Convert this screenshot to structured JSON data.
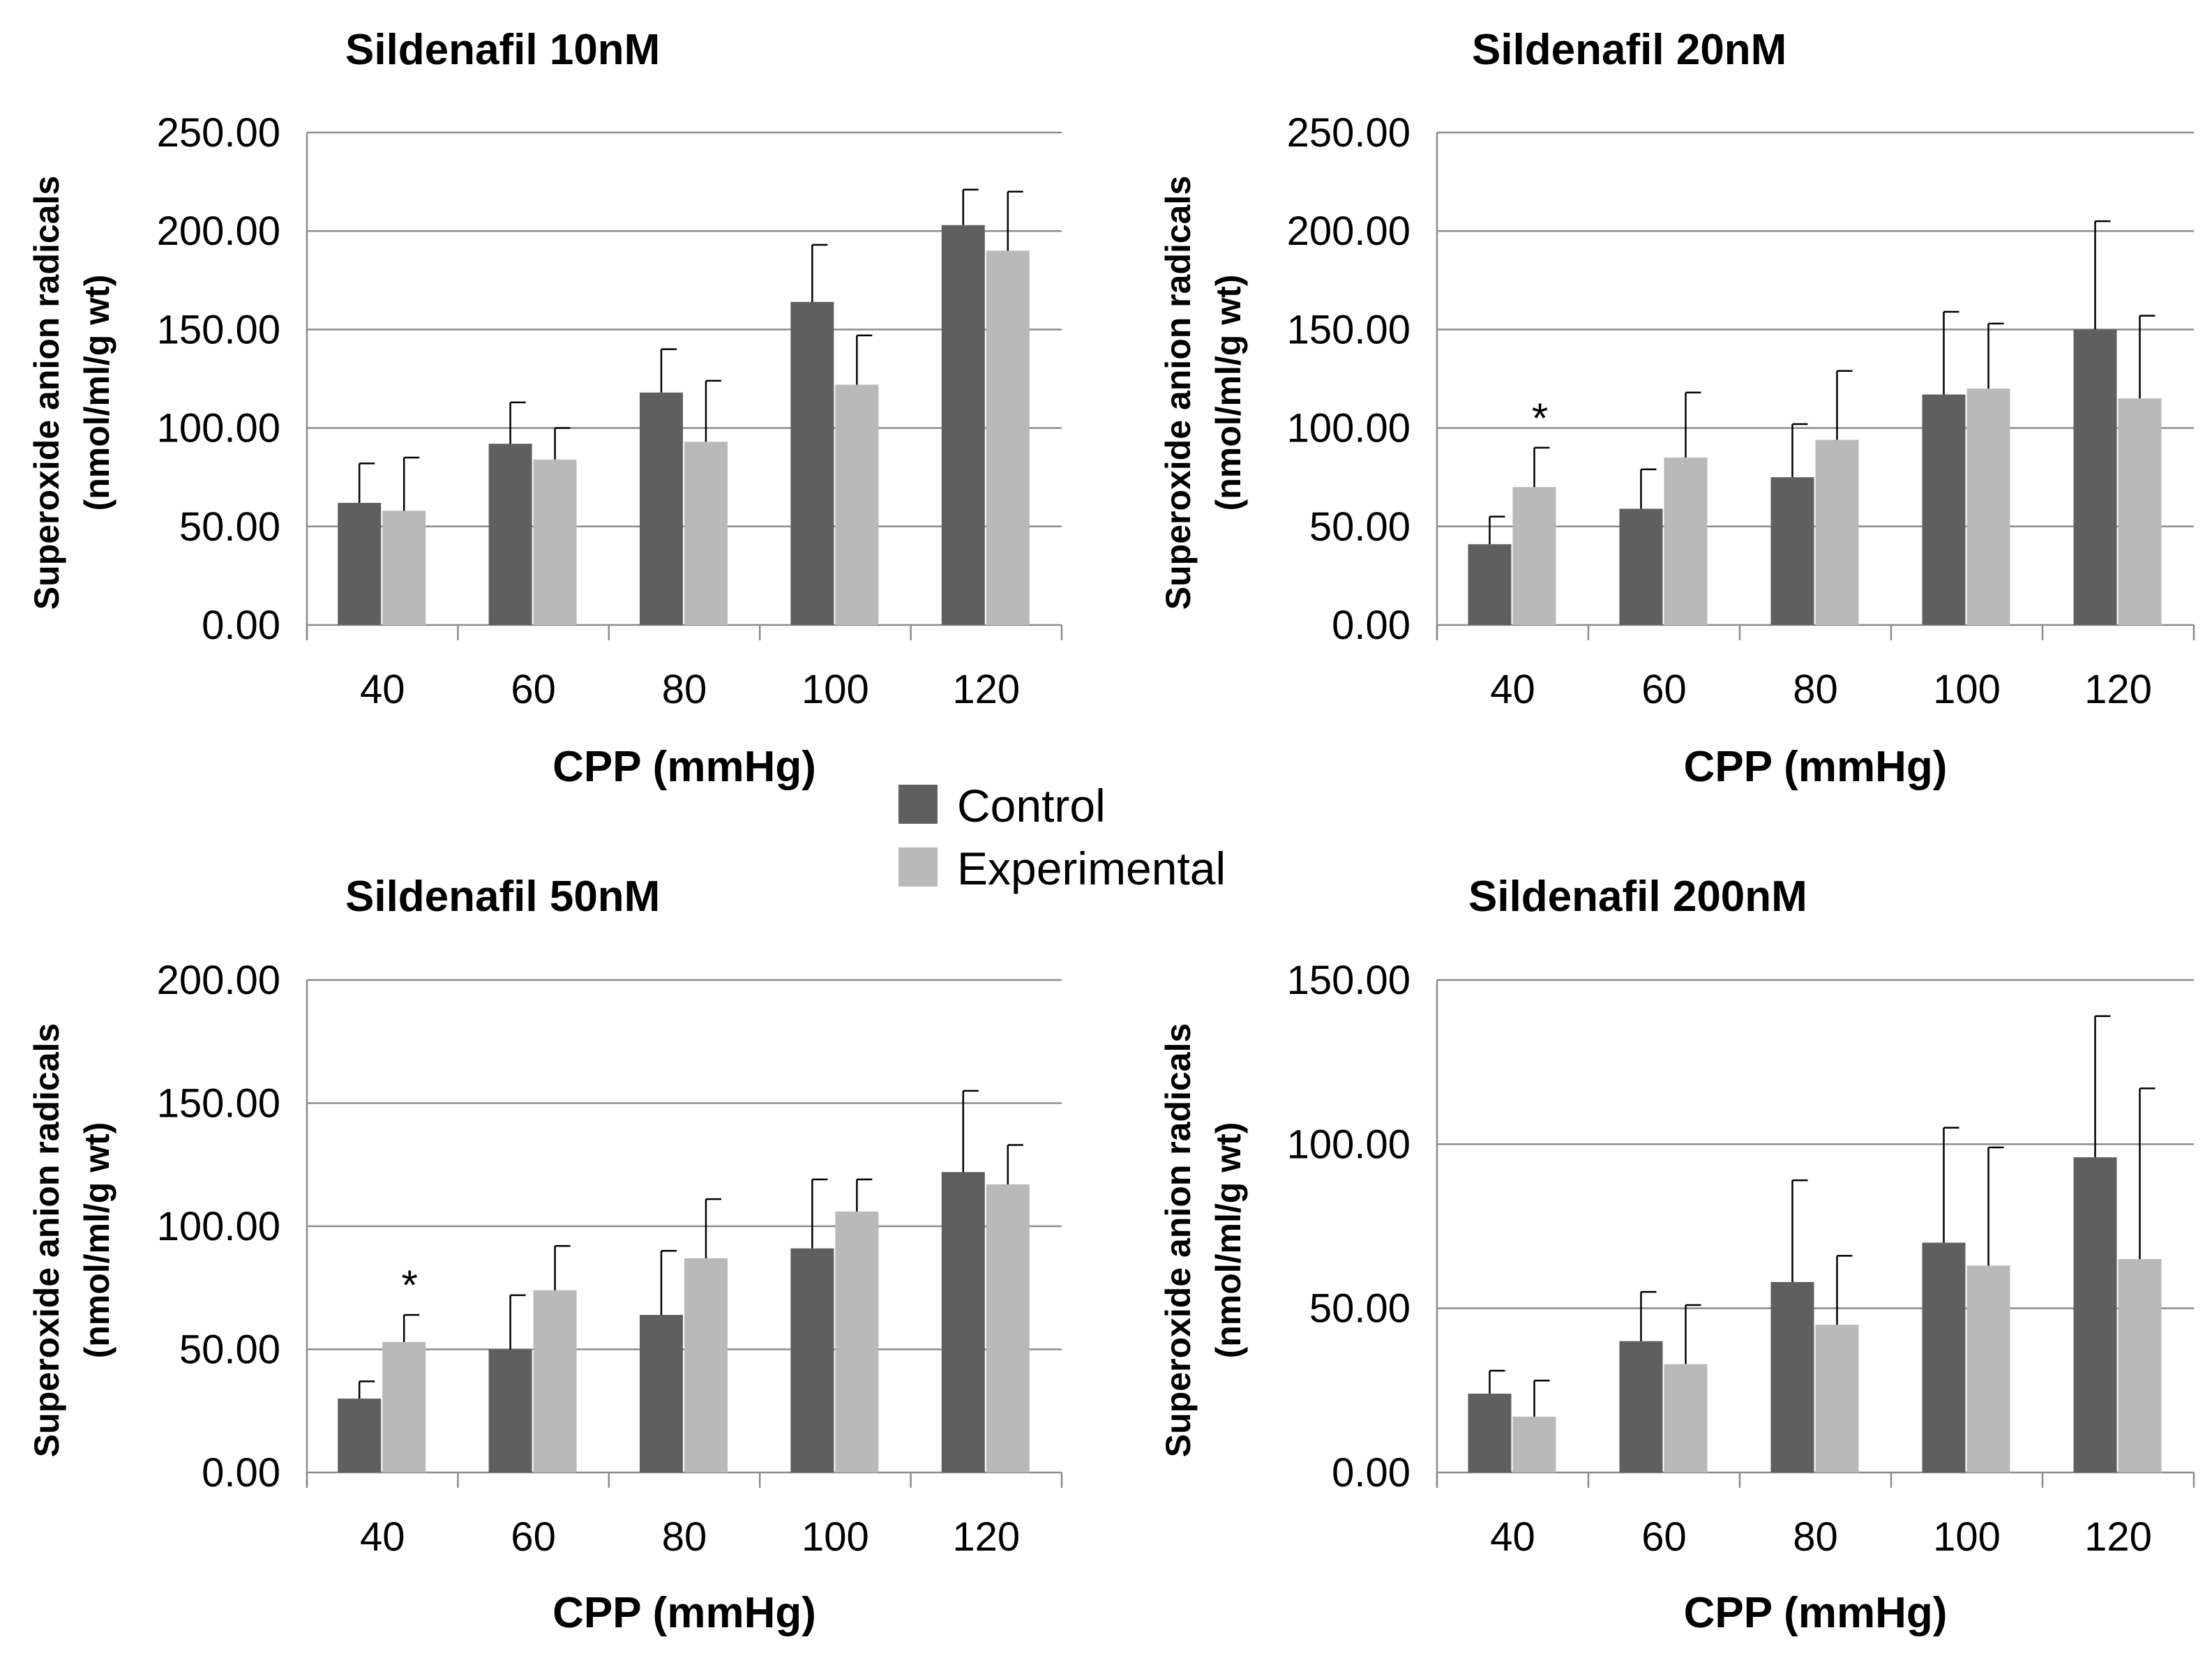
{
  "legend": {
    "items": [
      {
        "label": "Control",
        "color": "#5f5f5f"
      },
      {
        "label": "Experimental",
        "color": "#b9b9b9"
      }
    ]
  },
  "chart_data": [
    {
      "type": "bar",
      "title": "Sildenafil 10nM",
      "xlabel": "CPP (mmHg)",
      "ylabel": [
        "Superoxide anion radicals",
        "(nmol/ml/g wt)"
      ],
      "categories": [
        "40",
        "60",
        "80",
        "100",
        "120"
      ],
      "ylim": [
        0,
        250
      ],
      "yticks": [
        0,
        50,
        100,
        150,
        200,
        250
      ],
      "ytick_labels": [
        "0.00",
        "50.00",
        "100.00",
        "150.00",
        "200.00",
        "250.00"
      ],
      "grid": true,
      "series": [
        {
          "name": "Control",
          "values": [
            62,
            92,
            118,
            164,
            203
          ],
          "errors": [
            20,
            21,
            22,
            29,
            18
          ]
        },
        {
          "name": "Experimental",
          "values": [
            58,
            84,
            93,
            122,
            190
          ],
          "errors": [
            27,
            16,
            31,
            25,
            30
          ]
        }
      ],
      "annotations": []
    },
    {
      "type": "bar",
      "title": "Sildenafil 20nM",
      "xlabel": "CPP (mmHg)",
      "ylabel": [
        "Superoxide anion radicals",
        "(nmol/ml/g wt)"
      ],
      "categories": [
        "40",
        "60",
        "80",
        "100",
        "120"
      ],
      "ylim": [
        0,
        250
      ],
      "yticks": [
        0,
        50,
        100,
        150,
        200,
        250
      ],
      "ytick_labels": [
        "0.00",
        "50.00",
        "100.00",
        "150.00",
        "200.00",
        "250.00"
      ],
      "grid": true,
      "series": [
        {
          "name": "Control",
          "values": [
            41,
            59,
            75,
            117,
            150
          ],
          "errors": [
            14,
            20,
            27,
            42,
            55
          ]
        },
        {
          "name": "Experimental",
          "values": [
            70,
            85,
            94,
            120,
            115
          ],
          "errors": [
            20,
            33,
            35,
            33,
            42
          ]
        }
      ],
      "annotations": [
        {
          "text": "*",
          "category": "40",
          "series": "Experimental"
        }
      ]
    },
    {
      "type": "bar",
      "title": "Sildenafil 50nM",
      "xlabel": "CPP (mmHg)",
      "ylabel": [
        "Superoxide anion radicals",
        "(nmol/ml/g wt)"
      ],
      "categories": [
        "40",
        "60",
        "80",
        "100",
        "120"
      ],
      "ylim": [
        0,
        200
      ],
      "yticks": [
        0,
        50,
        100,
        150,
        200
      ],
      "ytick_labels": [
        "0.00",
        "50.00",
        "100.00",
        "150.00",
        "200.00"
      ],
      "grid": true,
      "series": [
        {
          "name": "Control",
          "values": [
            30,
            50,
            64,
            91,
            122
          ],
          "errors": [
            7,
            22,
            26,
            28,
            33
          ]
        },
        {
          "name": "Experimental",
          "values": [
            53,
            74,
            87,
            106,
            117
          ],
          "errors": [
            11,
            18,
            24,
            13,
            16
          ]
        }
      ],
      "annotations": [
        {
          "text": "*",
          "category": "40",
          "series": "Experimental"
        }
      ]
    },
    {
      "type": "bar",
      "title": "Sildenafil 200nM",
      "xlabel": "CPP (mmHg)",
      "ylabel": [
        "Superoxide anion radicals",
        "(nmol/ml/g wt)"
      ],
      "categories": [
        "40",
        "60",
        "80",
        "100",
        "120"
      ],
      "ylim": [
        0,
        150
      ],
      "yticks": [
        0,
        50,
        100,
        150
      ],
      "ytick_labels": [
        "0.00",
        "50.00",
        "100.00",
        "150.00"
      ],
      "grid": true,
      "series": [
        {
          "name": "Control",
          "values": [
            24,
            40,
            58,
            70,
            96
          ],
          "errors": [
            7,
            15,
            31,
            35,
            43
          ]
        },
        {
          "name": "Experimental",
          "values": [
            17,
            33,
            45,
            63,
            65
          ],
          "errors": [
            11,
            18,
            21,
            36,
            52
          ]
        }
      ],
      "annotations": []
    }
  ]
}
